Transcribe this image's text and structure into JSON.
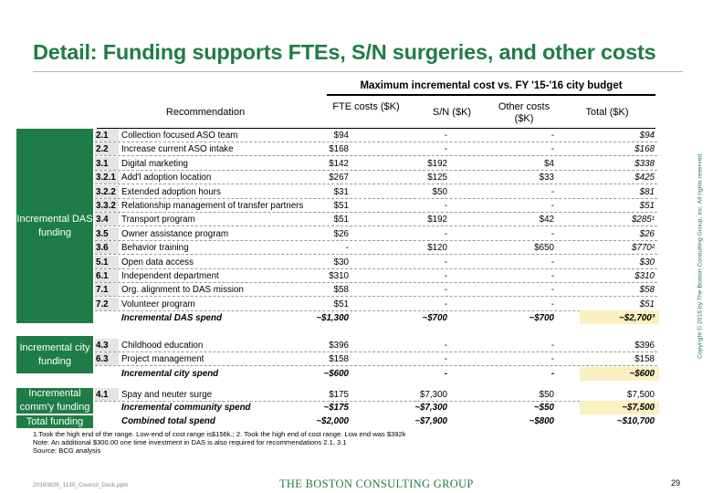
{
  "title": "Detail: Funding supports FTEs, S/N surgeries, and other costs",
  "super_header": "Maximum incremental cost vs. FY '15-'16 city budget",
  "columns": {
    "recommendation": "Recommendation",
    "fte": "FTE costs ($K)",
    "sn": "S/N ($K)",
    "other": "Other costs ($K)",
    "total": "Total ($K)"
  },
  "groups": {
    "das": {
      "label": "Incremental DAS funding",
      "rows": [
        {
          "num": "2.1",
          "rec": "Collection focused ASO team",
          "fte": "$94",
          "sn": "-",
          "other": "-",
          "total": "$94"
        },
        {
          "num": "2.2",
          "rec": "Increase current ASO intake",
          "fte": "$168",
          "sn": "-",
          "other": "-",
          "total": "$168"
        },
        {
          "num": "3.1",
          "rec": "Digital marketing",
          "fte": "$142",
          "sn": "$192",
          "other": "$4",
          "total": "$338"
        },
        {
          "num": "3.2.1",
          "rec": "Add'l adoption location",
          "fte": "$267",
          "sn": "$125",
          "other": "$33",
          "total": "$425"
        },
        {
          "num": "3.2.2",
          "rec": "Extended adoption hours",
          "fte": "$31",
          "sn": "$50",
          "other": "-",
          "total": "$81"
        },
        {
          "num": "3.3.2",
          "rec": "Relationship management of transfer partners",
          "fte": "$51",
          "sn": "-",
          "other": "-",
          "total": "$51"
        },
        {
          "num": "3.4",
          "rec": "Transport program",
          "fte": "$51",
          "sn": "$192",
          "other": "$42",
          "total": "$285¹"
        },
        {
          "num": "3.5",
          "rec": "Owner assistance program",
          "fte": "$26",
          "sn": "-",
          "other": "-",
          "total": "$26"
        },
        {
          "num": "3.6",
          "rec": "Behavior training",
          "fte": "-",
          "sn": "$120",
          "other": "$650",
          "total": "$770²"
        },
        {
          "num": "5.1",
          "rec": "Open data access",
          "fte": "$30",
          "sn": "-",
          "other": "-",
          "total": "$30"
        },
        {
          "num": "6.1",
          "rec": "Independent department",
          "fte": "$310",
          "sn": "-",
          "other": "-",
          "total": "$310"
        },
        {
          "num": "7.1",
          "rec": "Org. alignment to DAS mission",
          "fte": "$58",
          "sn": "-",
          "other": "-",
          "total": "$58"
        },
        {
          "num": "7.2",
          "rec": "Volunteer program",
          "fte": "$51",
          "sn": "-",
          "other": "-",
          "total": "$51"
        }
      ],
      "total": {
        "rec": "Incremental DAS spend",
        "fte": "~$1,300",
        "sn": "~$700",
        "other": "~$700",
        "total": "~$2,700³"
      }
    },
    "city": {
      "label": "Incremental city funding",
      "rows": [
        {
          "num": "4.3",
          "rec": "Childhood education",
          "fte": "$396",
          "sn": "-",
          "other": "-",
          "total": "$396"
        },
        {
          "num": "6.3",
          "rec": "Project management",
          "fte": "$158",
          "sn": "-",
          "other": "-",
          "total": "$158"
        }
      ],
      "total": {
        "rec": "Incremental city spend",
        "fte": "~$600",
        "sn": "-",
        "other": "-",
        "total": "~$600"
      }
    },
    "community": {
      "label": "Incremental comm'y funding",
      "rows": [
        {
          "num": "4.1",
          "rec": "Spay and neuter surge",
          "fte": "$175",
          "sn": "$7,300",
          "other": "$50",
          "total": "$7,500"
        }
      ],
      "total": {
        "rec": "Incremental community spend",
        "fte": "~$175",
        "sn": "~$7,300",
        "other": "~$50",
        "total": "~$7,500"
      }
    },
    "overall": {
      "label": "Total funding",
      "total": {
        "rec": "Combined total spend",
        "fte": "~$2,000",
        "sn": "~$7,900",
        "other": "~$800",
        "total": "~$10,700"
      }
    }
  },
  "footnotes": {
    "line1": "1.Took the high end of the range. Low-end of cost range is$156k.; 2. Took the high end of cost range. Low end was $392k",
    "line2": "Note: An additional $300.00 one time investment in DAS is also required for recommendations 2.1, 3.1",
    "line3": "Source: BCG analysis"
  },
  "footer": {
    "file": "20160826_1130_Council_Deck.pptx",
    "logo": "THE BOSTON CONSULTING GROUP",
    "page": "29",
    "copyright": "Copyright © 2016 by The Boston Consulting Group, Inc. All rights reserved."
  },
  "colors": {
    "brand_green": "#1e7d46",
    "highlight": "#fbf0c0",
    "num_bg": "#e4e4e4"
  }
}
